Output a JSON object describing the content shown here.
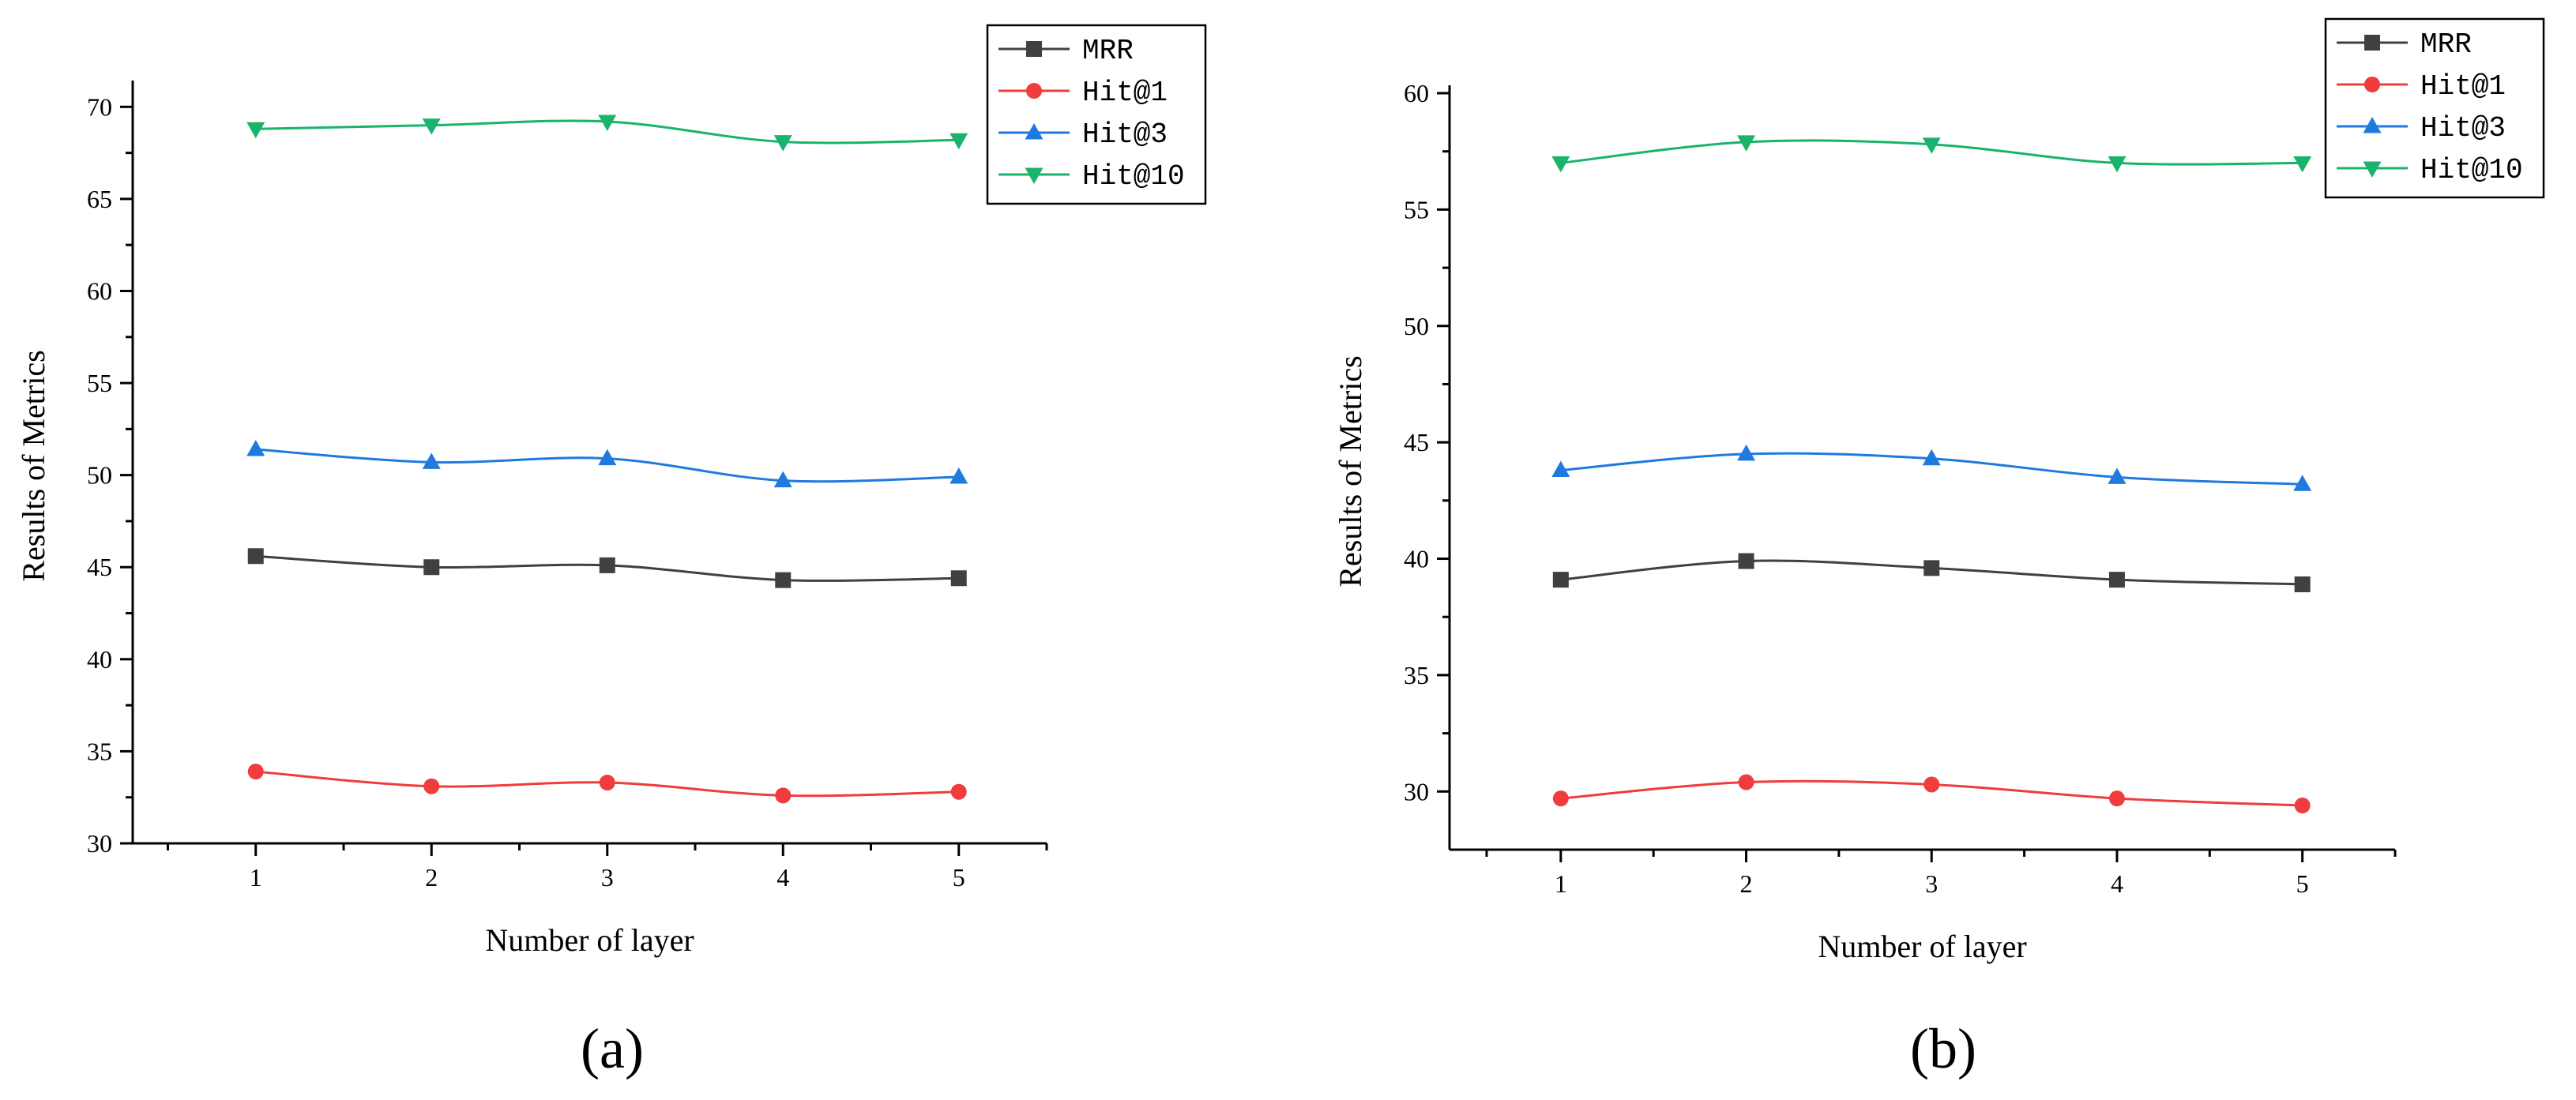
{
  "panels": [
    {
      "label": "(a)"
    },
    {
      "label": "(b)"
    }
  ],
  "chart_data": [
    {
      "type": "line",
      "xlabel": "Number of layer",
      "ylabel": "Results of Metrics",
      "x": [
        1,
        2,
        3,
        4,
        5
      ],
      "xlim": [
        0.3,
        5.5
      ],
      "ylim": [
        30,
        71
      ],
      "yticks": [
        30,
        35,
        40,
        45,
        50,
        55,
        60,
        65,
        70
      ],
      "legend": "top-right",
      "grid": false,
      "series": [
        {
          "name": "MRR",
          "color": "#404040",
          "marker": "square",
          "values": [
            45.6,
            45.0,
            45.1,
            44.3,
            44.4
          ]
        },
        {
          "name": "Hit@1",
          "color": "#f03c3c",
          "marker": "circle",
          "values": [
            33.9,
            33.1,
            33.3,
            32.6,
            32.8
          ]
        },
        {
          "name": "Hit@3",
          "color": "#1f7ae0",
          "marker": "triangle-up",
          "values": [
            51.4,
            50.7,
            50.9,
            49.7,
            49.9
          ]
        },
        {
          "name": "Hit@10",
          "color": "#19b36b",
          "marker": "triangle-down",
          "values": [
            68.8,
            69.0,
            69.2,
            68.1,
            68.2
          ]
        }
      ]
    },
    {
      "type": "line",
      "xlabel": "Number of layer",
      "ylabel": "Results of Metrics",
      "x": [
        1,
        2,
        3,
        4,
        5
      ],
      "xlim": [
        0.4,
        5.5
      ],
      "ylim": [
        27.5,
        60
      ],
      "yticks": [
        30,
        35,
        40,
        45,
        50,
        55,
        60
      ],
      "legend": "top-right",
      "grid": false,
      "series": [
        {
          "name": "MRR",
          "color": "#404040",
          "marker": "square",
          "values": [
            39.1,
            39.9,
            39.6,
            39.1,
            38.9
          ]
        },
        {
          "name": "Hit@1",
          "color": "#f03c3c",
          "marker": "circle",
          "values": [
            29.7,
            30.4,
            30.3,
            29.7,
            29.4
          ]
        },
        {
          "name": "Hit@3",
          "color": "#1f7ae0",
          "marker": "triangle-up",
          "values": [
            43.8,
            44.5,
            44.3,
            43.5,
            43.2
          ]
        },
        {
          "name": "Hit@10",
          "color": "#19b36b",
          "marker": "triangle-down",
          "values": [
            57.0,
            57.9,
            57.8,
            57.0,
            57.0
          ]
        }
      ]
    }
  ]
}
